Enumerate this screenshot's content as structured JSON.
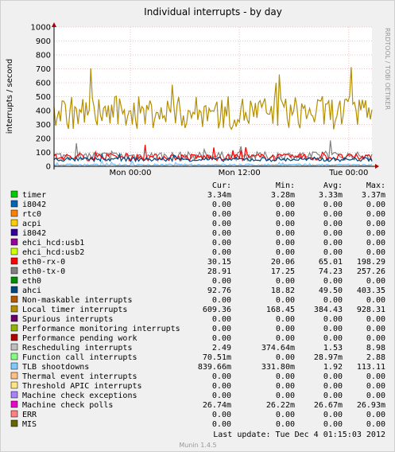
{
  "chart_data": {
    "type": "line",
    "title": "Individual interrupts - by day",
    "ylabel": "interrupts / second",
    "xlabel": "",
    "ylim": [
      0,
      1000
    ],
    "yticks": [
      0,
      100,
      200,
      300,
      400,
      500,
      600,
      700,
      800,
      900,
      1000
    ],
    "xticks": [
      {
        "label": "Mon 00:00",
        "t": 0.24
      },
      {
        "label": "Mon 12:00",
        "t": 0.583
      },
      {
        "label": "Tue 00:00",
        "t": 0.927
      }
    ],
    "grid": true,
    "side_label": "RRDTOOL / TOBI OETIKER",
    "legend_header": [
      "Cur:",
      "Min:",
      "Avg:",
      "Max:"
    ],
    "legend": [
      {
        "name": "timer",
        "color": "#00cc00",
        "cur": "3.34m",
        "min": "3.28m",
        "avg": "3.33m",
        "max": "3.37m"
      },
      {
        "name": "i8042",
        "color": "#0066b3",
        "cur": "0.00",
        "min": "0.00",
        "avg": "0.00",
        "max": "0.00"
      },
      {
        "name": "rtc0",
        "color": "#ff8000",
        "cur": "0.00",
        "min": "0.00",
        "avg": "0.00",
        "max": "0.00"
      },
      {
        "name": "acpi",
        "color": "#ffcc00",
        "cur": "0.00",
        "min": "0.00",
        "avg": "0.00",
        "max": "0.00"
      },
      {
        "name": "i8042",
        "color": "#330099",
        "cur": "0.00",
        "min": "0.00",
        "avg": "0.00",
        "max": "0.00"
      },
      {
        "name": "ehci_hcd:usb1",
        "color": "#990099",
        "cur": "0.00",
        "min": "0.00",
        "avg": "0.00",
        "max": "0.00"
      },
      {
        "name": "ehci_hcd:usb2",
        "color": "#ccff00",
        "cur": "0.00",
        "min": "0.00",
        "avg": "0.00",
        "max": "0.00"
      },
      {
        "name": "eth0-rx-0",
        "color": "#ff0000",
        "cur": "30.15",
        "min": "20.06",
        "avg": "65.01",
        "max": "198.29"
      },
      {
        "name": "eth0-tx-0",
        "color": "#808080",
        "cur": "28.91",
        "min": "17.25",
        "avg": "74.23",
        "max": "257.26"
      },
      {
        "name": "eth0",
        "color": "#008f00",
        "cur": "0.00",
        "min": "0.00",
        "avg": "0.00",
        "max": "0.00"
      },
      {
        "name": "ahci",
        "color": "#00487d",
        "cur": "92.76",
        "min": "18.82",
        "avg": "49.50",
        "max": "403.35"
      },
      {
        "name": "Non-maskable interrupts",
        "color": "#b35a00",
        "cur": "0.00",
        "min": "0.00",
        "avg": "0.00",
        "max": "0.00"
      },
      {
        "name": "Local timer interrupts",
        "color": "#b38f00",
        "cur": "609.36",
        "min": "168.45",
        "avg": "384.43",
        "max": "928.31"
      },
      {
        "name": "Spurious interrupts",
        "color": "#6b006b",
        "cur": "0.00",
        "min": "0.00",
        "avg": "0.00",
        "max": "0.00"
      },
      {
        "name": "Performance monitoring interrupts",
        "color": "#8fb300",
        "cur": "0.00",
        "min": "0.00",
        "avg": "0.00",
        "max": "0.00"
      },
      {
        "name": "Performance pending work",
        "color": "#b30000",
        "cur": "0.00",
        "min": "0.00",
        "avg": "0.00",
        "max": "0.00"
      },
      {
        "name": "Rescheduling interrupts",
        "color": "#bebebe",
        "cur": "2.49",
        "min": "374.64m",
        "avg": "1.53",
        "max": "8.98"
      },
      {
        "name": "Function call interrupts",
        "color": "#80ff80",
        "cur": "70.51m",
        "min": "0.00",
        "avg": "28.97m",
        "max": "2.88"
      },
      {
        "name": "TLB shootdowns",
        "color": "#80c9ff",
        "cur": "839.66m",
        "min": "331.80m",
        "avg": "1.92",
        "max": "113.11"
      },
      {
        "name": "Thermal event interrupts",
        "color": "#ffc080",
        "cur": "0.00",
        "min": "0.00",
        "avg": "0.00",
        "max": "0.00"
      },
      {
        "name": "Threshold APIC interrupts",
        "color": "#ffe680",
        "cur": "0.00",
        "min": "0.00",
        "avg": "0.00",
        "max": "0.00"
      },
      {
        "name": "Machine check exceptions",
        "color": "#aa80ff",
        "cur": "0.00",
        "min": "0.00",
        "avg": "0.00",
        "max": "0.00"
      },
      {
        "name": "Machine check polls",
        "color": "#ee00cc",
        "cur": "26.74m",
        "min": "26.22m",
        "avg": "26.67m",
        "max": "26.93m"
      },
      {
        "name": "ERR",
        "color": "#ff8080",
        "cur": "0.00",
        "min": "0.00",
        "avg": "0.00",
        "max": "0.00"
      },
      {
        "name": "MIS",
        "color": "#666600",
        "cur": "0.00",
        "min": "0.00",
        "avg": "0.00",
        "max": "0.00"
      }
    ],
    "last_update": "Last update:  Tue Dec  4 01:15:03 2012",
    "footer": "Munin 1.4.5"
  }
}
